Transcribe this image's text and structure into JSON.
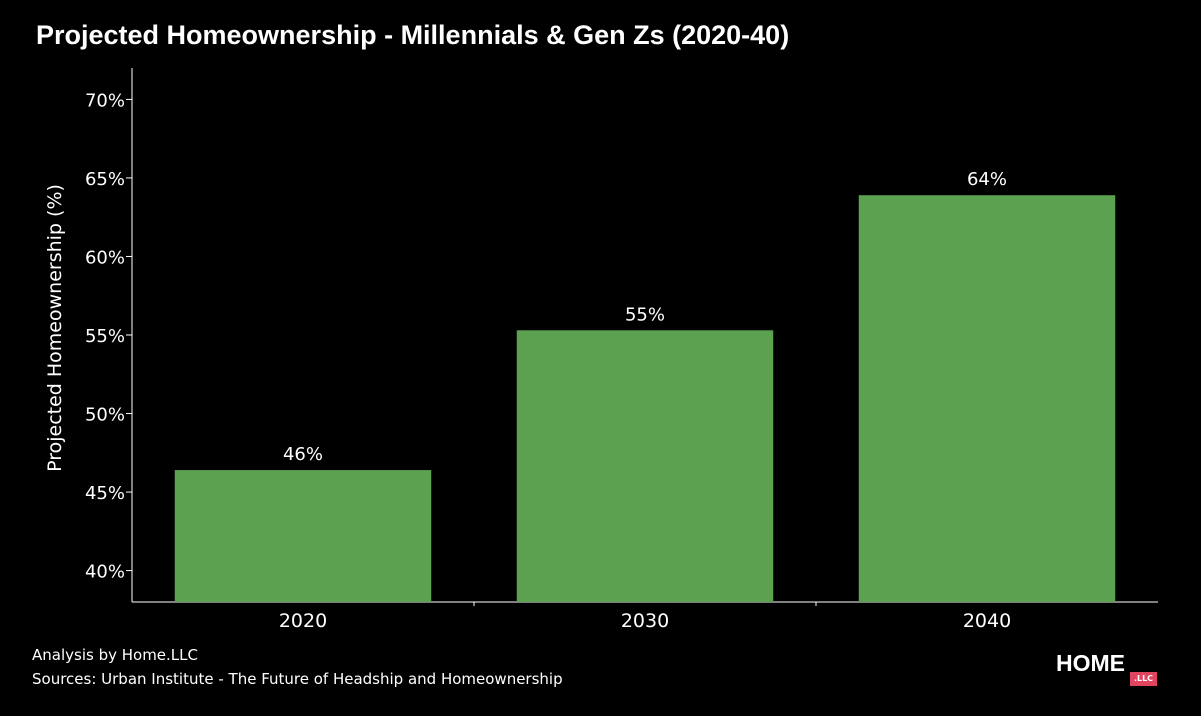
{
  "chart_data": {
    "type": "bar",
    "title": "Projected Homeownership - Millennials & Gen Zs (2020-40)",
    "xlabel": "",
    "ylabel": "Projected Homeownership (%)",
    "categories": [
      "2020",
      "2030",
      "2040"
    ],
    "values": [
      46.4,
      55.3,
      63.9
    ],
    "data_labels": [
      "46%",
      "55%",
      "64%"
    ],
    "ylim": [
      38,
      72
    ],
    "yticks": [
      40,
      45,
      50,
      55,
      60,
      65,
      70
    ],
    "ytick_labels": [
      "40%",
      "45%",
      "50%",
      "55%",
      "60%",
      "65%",
      "70%"
    ],
    "bar_color": "#5ba150",
    "background": "#000000",
    "grid": false
  },
  "footer": {
    "analysis": "Analysis by Home.LLC",
    "sources": "Sources: Urban Institute - The Future of Headship and Homeownership"
  },
  "logo": {
    "word": "HOME",
    "badge": ".LLC",
    "badge_color": "#e0445e"
  }
}
